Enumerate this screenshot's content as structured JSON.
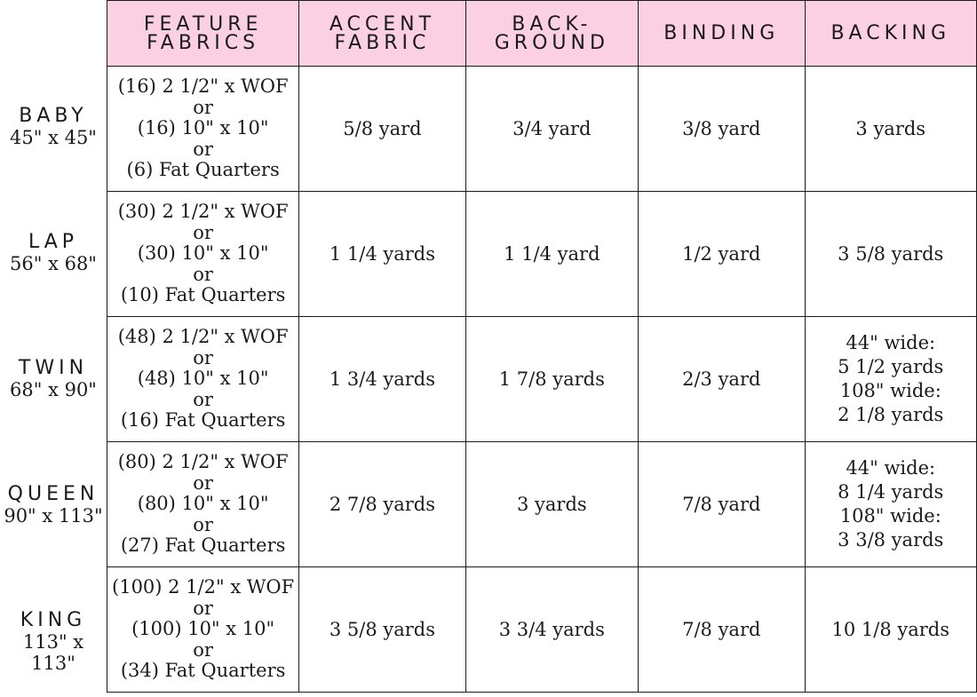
{
  "headers": [
    [
      "FEATURE",
      "FABRICS"
    ],
    [
      "ACCENT",
      "FABRIC"
    ],
    [
      "BACK-",
      "GROUND"
    ],
    [
      "BINDING"
    ],
    [
      "BACKING"
    ]
  ],
  "sizes": [
    {
      "name": "BABY",
      "dims": "45\" x 45\""
    },
    {
      "name": "LAP",
      "dims": "56\" x 68\""
    },
    {
      "name": "TWIN",
      "dims": "68\" x 90\""
    },
    {
      "name": "QUEEN",
      "dims": "90\" x 113\""
    },
    {
      "name": "KING",
      "dims": "113\" x 113\""
    }
  ],
  "rows": [
    {
      "feature": [
        "(16) 2 1/2\" x WOF",
        "or",
        "(16) 10\" x 10\"",
        "or",
        "(6) Fat Quarters"
      ],
      "accent": "5/8 yard",
      "background": "3/4 yard",
      "binding": "3/8 yard",
      "backing": [
        "3 yards"
      ]
    },
    {
      "feature": [
        "(30) 2 1/2\" x WOF",
        "or",
        "(30) 10\" x 10\"",
        "or",
        "(10) Fat Quarters"
      ],
      "accent": "1 1/4 yards",
      "background": "1 1/4 yard",
      "binding": "1/2 yard",
      "backing": [
        "3 5/8 yards"
      ]
    },
    {
      "feature": [
        "(48) 2 1/2\" x WOF",
        "or",
        "(48) 10\" x 10\"",
        "or",
        "(16) Fat Quarters"
      ],
      "accent": "1 3/4 yards",
      "background": "1 7/8 yards",
      "binding": "2/3 yard",
      "backing": [
        "44\" wide:",
        "5 1/2 yards",
        "108\" wide:",
        "2 1/8 yards"
      ]
    },
    {
      "feature": [
        "(80) 2 1/2\" x WOF",
        "or",
        "(80) 10\" x 10\"",
        "or",
        "(27) Fat Quarters"
      ],
      "accent": "2 7/8 yards",
      "background": "3 yards",
      "binding": "7/8  yard",
      "backing": [
        "44\" wide:",
        "8 1/4 yards",
        "108\" wide:",
        "3 3/8 yards"
      ]
    },
    {
      "feature": [
        "(100) 2 1/2\" x WOF",
        "or",
        "(100) 10\" x 10\"",
        "or",
        "(34) Fat Quarters"
      ],
      "accent": "3 5/8 yards",
      "background": "3 3/4 yards",
      "binding": "7/8 yard",
      "backing": [
        "10 1/8 yards"
      ]
    }
  ]
}
